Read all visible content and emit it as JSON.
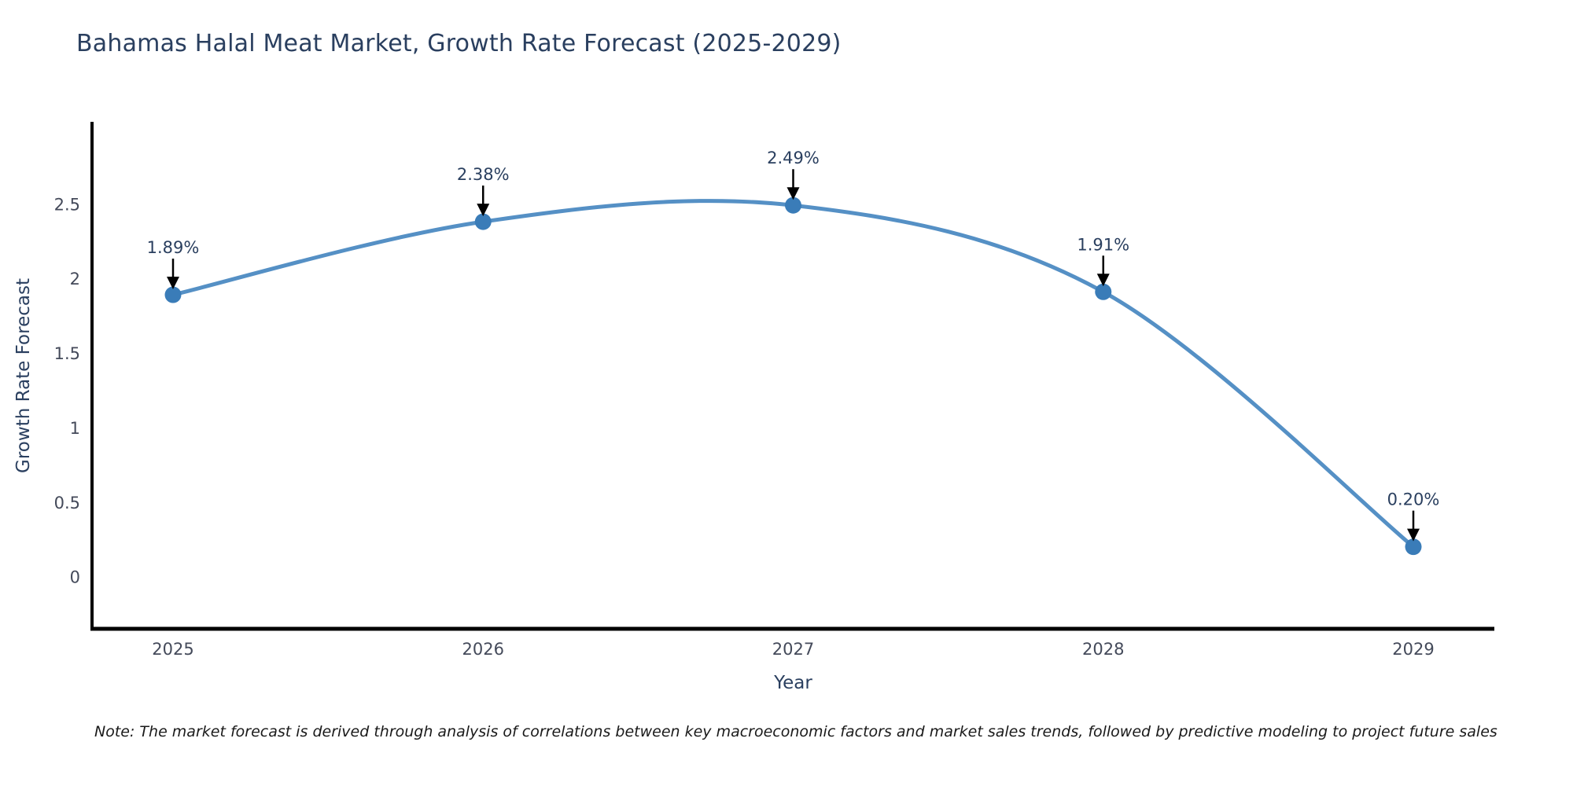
{
  "note": "Note: The market forecast is derived through analysis of correlations between key macroeconomic factors and market sales trends, followed by predictive modeling to project future sales",
  "colors": {
    "line": "#5590c5",
    "marker": "#3a7cb8",
    "axis": "#000000",
    "title_text": "#2a3f5f",
    "tick_text": "#444a5a",
    "annotation_text": "#2a3f5f",
    "arrow": "#000000",
    "background": "#ffffff"
  },
  "chart_data": {
    "type": "line",
    "line_shape": "spline",
    "title": "Bahamas Halal Meat Market, Growth Rate Forecast (2025-2029)",
    "xlabel": "Year",
    "ylabel": "Growth Rate Forecast",
    "categories": [
      "2025",
      "2026",
      "2027",
      "2028",
      "2029"
    ],
    "values": [
      1.89,
      2.38,
      2.49,
      1.91,
      0.2
    ],
    "point_labels": [
      "1.89%",
      "2.38%",
      "2.49%",
      "1.91%",
      "0.20%"
    ],
    "y_ticks": [
      0,
      0.5,
      1,
      1.5,
      2,
      2.5
    ],
    "ylim": [
      -0.35,
      3.05
    ],
    "grid": false,
    "legend": false
  }
}
